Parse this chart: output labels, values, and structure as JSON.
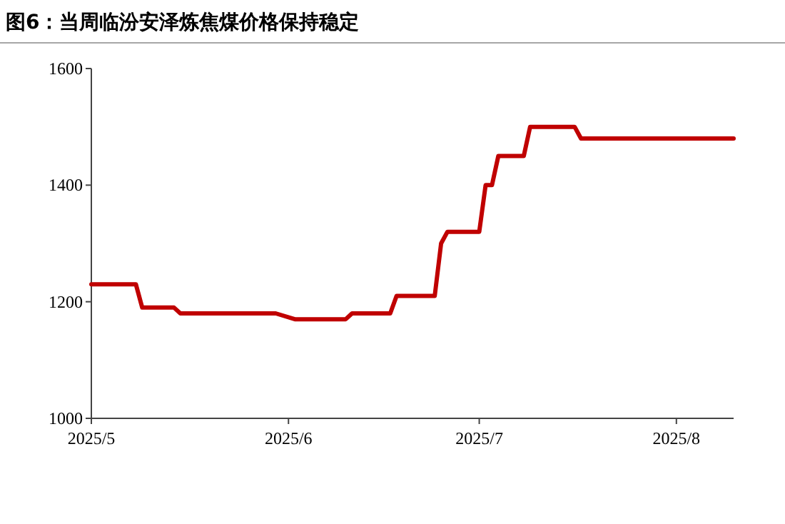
{
  "chart_data": {
    "type": "line",
    "title": "图6：当周临汾安泽炼焦煤价格保持稳定",
    "x": [
      "2025-05-01",
      "2025-05-08",
      "2025-05-09",
      "2025-05-14",
      "2025-05-15",
      "2025-05-30",
      "2025-06-02",
      "2025-06-10",
      "2025-06-11",
      "2025-06-17",
      "2025-06-18",
      "2025-06-24",
      "2025-06-25",
      "2025-06-26",
      "2025-07-01",
      "2025-07-02",
      "2025-07-03",
      "2025-07-04",
      "2025-07-08",
      "2025-07-09",
      "2025-07-16",
      "2025-07-17",
      "2025-08-10"
    ],
    "series": [
      {
        "color": "#c00000",
        "values": [
          1230,
          1230,
          1190,
          1190,
          1180,
          1180,
          1170,
          1170,
          1180,
          1180,
          1210,
          1210,
          1300,
          1320,
          1320,
          1400,
          1400,
          1450,
          1450,
          1500,
          1500,
          1480,
          1480
        ]
      }
    ],
    "xlim": [
      "2025-05-01",
      "2025-08-10"
    ],
    "xticks": [
      {
        "value": "2025-05-01",
        "label": "2025/5"
      },
      {
        "value": "2025-06-01",
        "label": "2025/6"
      },
      {
        "value": "2025-07-01",
        "label": "2025/7"
      },
      {
        "value": "2025-08-01",
        "label": "2025/8"
      }
    ],
    "ylim": [
      1000,
      1600
    ],
    "yticks": [
      1000,
      1200,
      1400,
      1600
    ]
  }
}
